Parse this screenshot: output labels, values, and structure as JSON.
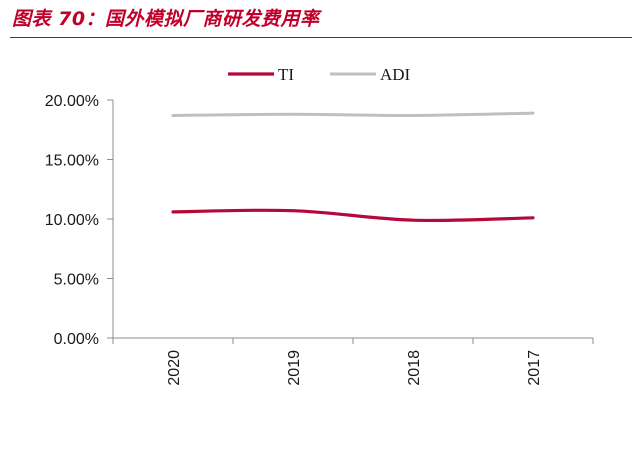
{
  "header": {
    "title": "图表 70：国外模拟厂商研发费用率"
  },
  "chart_data": {
    "type": "line",
    "categories": [
      "2020",
      "2019",
      "2018",
      "2017"
    ],
    "series": [
      {
        "name": "TI",
        "values": [
          0.106,
          0.107,
          0.099,
          0.101
        ],
        "color": "#b5093b"
      },
      {
        "name": "ADI",
        "values": [
          0.187,
          0.188,
          0.187,
          0.189
        ],
        "color": "#bfbfbf"
      }
    ],
    "yticks": [
      "0.00%",
      "5.00%",
      "10.00%",
      "15.00%",
      "20.00%"
    ],
    "ylim": [
      0,
      0.2
    ],
    "ytick_step": 0.05,
    "legend_position": "top-center",
    "grid": false
  }
}
